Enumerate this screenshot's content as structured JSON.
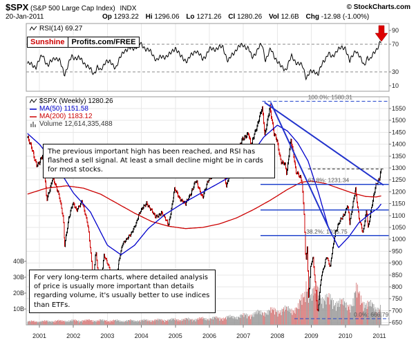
{
  "header": {
    "symbol": "$SPX",
    "name": "(S&P 500 Large Cap Index)",
    "exchange": "INDX",
    "copyright": "© StockCharts.com",
    "date": "20-Jan-2011",
    "quote": {
      "op_label": "Op",
      "op": "1293.22",
      "hi_label": "Hi",
      "hi": "1296.06",
      "lo_label": "Lo",
      "lo": "1271.26",
      "cl_label": "Cl",
      "cl": "1280.26",
      "vol_label": "Vol",
      "vol": "12.6B",
      "chg_label": "Chg",
      "chg": "-12.98 (-1.00%)"
    }
  },
  "watermark": {
    "brand": "Sunshine",
    "suffix": "Profits.com/FREE"
  },
  "rsi_panel": {
    "legend": "RSI(14) 69.27"
  },
  "main_panel": {
    "legend_spx": "$SPX (Weekly) 1280.26",
    "legend_ma50": "MA(50) 1151.58",
    "legend_ma200": "MA(200) 1183.12",
    "legend_volume": "Volume 12,614,335,488"
  },
  "annotations": {
    "note1": "The previous important high has been reached, and RSI has flashed a sell signal. At least a small decline might be in cards for most stocks.",
    "note2": "For very long-term charts, where detailed analysis of price is usually more important than details regarding volume, it's usually better to use indices than ETFs."
  },
  "colors": {
    "up": "#000000",
    "down": "#cc0000",
    "ma50": "#0000cc",
    "ma200": "#cc0000",
    "trend": "#2233cc",
    "fib": "#2244cc",
    "volume_up": "#a0a0a0",
    "volume_down": "#d98080",
    "arrow": "#dd0000",
    "grid": "#e7e7e7",
    "panel_border": "#999999"
  },
  "chart_data": {
    "type": "line",
    "title": "$SPX S&P 500 Large Cap Index, weekly candlesticks with RSI(14), MA(50), MA(200) and volume overlay, 2001-2011",
    "x_unit": "decimal_year",
    "xlim": [
      2000.65,
      2011.15
    ],
    "price_ylim": [
      650,
      1600
    ],
    "rsi_ylim": [
      0,
      100
    ],
    "legend_position": "top-left",
    "grid": true,
    "x_ticks": [
      "2001",
      "2002",
      "2003",
      "2004",
      "2005",
      "2006",
      "2007",
      "2008",
      "2009",
      "2010",
      "2011"
    ],
    "price_ticks": [
      1550,
      1500,
      1450,
      1400,
      1350,
      1300,
      1250,
      1200,
      1150,
      1100,
      1050,
      1000,
      950,
      900,
      850,
      800,
      750,
      700,
      650
    ],
    "rsi_ticks": [
      90,
      70,
      30,
      10
    ],
    "rsi_levels": {
      "overbought": 70,
      "oversold": 30
    },
    "volume_ticks": [
      {
        "v": 40,
        "label": "40B"
      },
      {
        "v": 30,
        "label": "30B"
      },
      {
        "v": 20,
        "label": "20B"
      },
      {
        "v": 10,
        "label": "10B"
      }
    ],
    "series": [
      {
        "name": "$SPX weekly close",
        "render": "candles",
        "keypoints": [
          [
            2000.65,
            1430
          ],
          [
            2000.8,
            1370
          ],
          [
            2000.92,
            1315
          ],
          [
            2001.0,
            1320
          ],
          [
            2001.1,
            1350
          ],
          [
            2001.22,
            1170
          ],
          [
            2001.4,
            1255
          ],
          [
            2001.58,
            1190
          ],
          [
            2001.7,
            1085
          ],
          [
            2001.74,
            966
          ],
          [
            2001.86,
            1090
          ],
          [
            2001.98,
            1150
          ],
          [
            2002.1,
            1120
          ],
          [
            2002.25,
            1165
          ],
          [
            2002.45,
            1040
          ],
          [
            2002.53,
            920
          ],
          [
            2002.58,
            800
          ],
          [
            2002.66,
            950
          ],
          [
            2002.78,
            777
          ],
          [
            2002.9,
            935
          ],
          [
            2003.05,
            880
          ],
          [
            2003.2,
            800
          ],
          [
            2003.45,
            985
          ],
          [
            2003.7,
            1020
          ],
          [
            2003.95,
            1110
          ],
          [
            2004.15,
            1155
          ],
          [
            2004.4,
            1095
          ],
          [
            2004.6,
            1110
          ],
          [
            2004.8,
            1062
          ],
          [
            2004.98,
            1210
          ],
          [
            2005.1,
            1180
          ],
          [
            2005.3,
            1145
          ],
          [
            2005.6,
            1245
          ],
          [
            2005.8,
            1178
          ],
          [
            2005.98,
            1250
          ],
          [
            2006.2,
            1290
          ],
          [
            2006.37,
            1325
          ],
          [
            2006.5,
            1225
          ],
          [
            2006.75,
            1340
          ],
          [
            2006.98,
            1420
          ],
          [
            2007.15,
            1450
          ],
          [
            2007.22,
            1387
          ],
          [
            2007.42,
            1490
          ],
          [
            2007.55,
            1552
          ],
          [
            2007.63,
            1433
          ],
          [
            2007.78,
            1565
          ],
          [
            2007.9,
            1440
          ],
          [
            2008.0,
            1411
          ],
          [
            2008.1,
            1330
          ],
          [
            2008.22,
            1315
          ],
          [
            2008.27,
            1273
          ],
          [
            2008.4,
            1425
          ],
          [
            2008.55,
            1280
          ],
          [
            2008.72,
            1255
          ],
          [
            2008.79,
            1100
          ],
          [
            2008.83,
            900
          ],
          [
            2008.88,
            968
          ],
          [
            2008.92,
            752
          ],
          [
            2008.98,
            890
          ],
          [
            2009.05,
            930
          ],
          [
            2009.12,
            805
          ],
          [
            2009.18,
            683
          ],
          [
            2009.3,
            850
          ],
          [
            2009.45,
            930
          ],
          [
            2009.55,
            880
          ],
          [
            2009.7,
            1030
          ],
          [
            2009.82,
            1070
          ],
          [
            2009.92,
            1093
          ],
          [
            2010.0,
            1115
          ],
          [
            2010.06,
            1150
          ],
          [
            2010.13,
            1065
          ],
          [
            2010.3,
            1217
          ],
          [
            2010.4,
            1090
          ],
          [
            2010.52,
            1023
          ],
          [
            2010.62,
            1125
          ],
          [
            2010.67,
            1050
          ],
          [
            2010.78,
            1145
          ],
          [
            2010.9,
            1225
          ],
          [
            2011.0,
            1258
          ],
          [
            2011.05,
            1293
          ],
          [
            2011.07,
            1280.26
          ]
        ]
      },
      {
        "name": "MA(50)",
        "render": "line",
        "color_key": "ma50",
        "keypoints": [
          [
            2000.65,
            1445
          ],
          [
            2001.0,
            1400
          ],
          [
            2001.5,
            1310
          ],
          [
            2002.0,
            1195
          ],
          [
            2002.5,
            1115
          ],
          [
            2003.0,
            975
          ],
          [
            2003.4,
            935
          ],
          [
            2003.8,
            975
          ],
          [
            2004.2,
            1045
          ],
          [
            2004.7,
            1105
          ],
          [
            2005.2,
            1150
          ],
          [
            2005.7,
            1190
          ],
          [
            2006.2,
            1230
          ],
          [
            2006.7,
            1270
          ],
          [
            2007.1,
            1330
          ],
          [
            2007.6,
            1430
          ],
          [
            2008.0,
            1480
          ],
          [
            2008.3,
            1455
          ],
          [
            2008.6,
            1405
          ],
          [
            2008.9,
            1330
          ],
          [
            2009.2,
            1200
          ],
          [
            2009.5,
            1050
          ],
          [
            2009.8,
            965
          ],
          [
            2010.1,
            1010
          ],
          [
            2010.4,
            1070
          ],
          [
            2010.7,
            1105
          ],
          [
            2010.95,
            1130
          ],
          [
            2011.07,
            1151.58
          ]
        ]
      },
      {
        "name": "MA(200)",
        "render": "line",
        "color_key": "ma200",
        "keypoints": [
          [
            2000.65,
            1190
          ],
          [
            2001.2,
            1215
          ],
          [
            2001.8,
            1225
          ],
          [
            2002.3,
            1215
          ],
          [
            2002.8,
            1190
          ],
          [
            2003.3,
            1150
          ],
          [
            2003.8,
            1110
          ],
          [
            2004.3,
            1075
          ],
          [
            2004.8,
            1055
          ],
          [
            2005.3,
            1045
          ],
          [
            2005.8,
            1050
          ],
          [
            2006.3,
            1065
          ],
          [
            2006.8,
            1090
          ],
          [
            2007.3,
            1125
          ],
          [
            2007.8,
            1165
          ],
          [
            2008.3,
            1210
          ],
          [
            2008.7,
            1240
          ],
          [
            2009.0,
            1245
          ],
          [
            2009.4,
            1235
          ],
          [
            2009.8,
            1215
          ],
          [
            2010.2,
            1195
          ],
          [
            2010.6,
            1180
          ],
          [
            2010.9,
            1178
          ],
          [
            2011.07,
            1183.12
          ]
        ]
      },
      {
        "name": "RSI(14)",
        "render": "line",
        "panel": "rsi",
        "keypoints": [
          [
            2000.65,
            42
          ],
          [
            2000.9,
            38
          ],
          [
            2001.1,
            55
          ],
          [
            2001.25,
            38
          ],
          [
            2001.45,
            52
          ],
          [
            2001.6,
            45
          ],
          [
            2001.74,
            27
          ],
          [
            2001.95,
            52
          ],
          [
            2002.15,
            50
          ],
          [
            2002.35,
            42
          ],
          [
            2002.6,
            27
          ],
          [
            2002.7,
            38
          ],
          [
            2002.8,
            30
          ],
          [
            2002.95,
            47
          ],
          [
            2003.1,
            42
          ],
          [
            2003.25,
            37
          ],
          [
            2003.5,
            62
          ],
          [
            2003.75,
            64
          ],
          [
            2003.95,
            70
          ],
          [
            2004.2,
            62
          ],
          [
            2004.45,
            48
          ],
          [
            2004.65,
            52
          ],
          [
            2004.85,
            55
          ],
          [
            2005.0,
            66
          ],
          [
            2005.15,
            52
          ],
          [
            2005.35,
            46
          ],
          [
            2005.6,
            62
          ],
          [
            2005.8,
            48
          ],
          [
            2006.0,
            62
          ],
          [
            2006.2,
            64
          ],
          [
            2006.4,
            66
          ],
          [
            2006.55,
            45
          ],
          [
            2006.8,
            64
          ],
          [
            2007.0,
            69
          ],
          [
            2007.15,
            64
          ],
          [
            2007.25,
            50
          ],
          [
            2007.45,
            65
          ],
          [
            2007.55,
            69
          ],
          [
            2007.65,
            48
          ],
          [
            2007.8,
            62
          ],
          [
            2007.95,
            50
          ],
          [
            2008.1,
            37
          ],
          [
            2008.25,
            34
          ],
          [
            2008.42,
            52
          ],
          [
            2008.6,
            42
          ],
          [
            2008.75,
            38
          ],
          [
            2008.85,
            22
          ],
          [
            2008.95,
            28
          ],
          [
            2009.1,
            32
          ],
          [
            2009.2,
            26
          ],
          [
            2009.35,
            45
          ],
          [
            2009.5,
            57
          ],
          [
            2009.6,
            50
          ],
          [
            2009.75,
            62
          ],
          [
            2009.9,
            64
          ],
          [
            2010.0,
            66
          ],
          [
            2010.13,
            44
          ],
          [
            2010.3,
            63
          ],
          [
            2010.45,
            48
          ],
          [
            2010.55,
            40
          ],
          [
            2010.65,
            52
          ],
          [
            2010.72,
            45
          ],
          [
            2010.85,
            60
          ],
          [
            2010.95,
            65
          ],
          [
            2011.02,
            71
          ],
          [
            2011.05,
            73
          ],
          [
            2011.07,
            69.27
          ]
        ]
      },
      {
        "name": "Volume (billions of shares)",
        "render": "bars",
        "panel": "volume",
        "keypoints": [
          [
            2000.65,
            2.2
          ],
          [
            2001.5,
            2.6
          ],
          [
            2002.5,
            3.0
          ],
          [
            2003.5,
            2.7
          ],
          [
            2004.5,
            3.2
          ],
          [
            2005.5,
            3.8
          ],
          [
            2006.5,
            4.8
          ],
          [
            2007.0,
            6.0
          ],
          [
            2007.6,
            8.5
          ],
          [
            2008.0,
            9.5
          ],
          [
            2008.3,
            10
          ],
          [
            2008.6,
            11
          ],
          [
            2008.8,
            20
          ],
          [
            2008.85,
            30
          ],
          [
            2008.88,
            26
          ],
          [
            2009.0,
            18
          ],
          [
            2009.2,
            24
          ],
          [
            2009.35,
            17
          ],
          [
            2009.6,
            16
          ],
          [
            2009.8,
            15
          ],
          [
            2010.0,
            13
          ],
          [
            2010.2,
            14
          ],
          [
            2010.33,
            22
          ],
          [
            2010.5,
            16
          ],
          [
            2010.7,
            13
          ],
          [
            2010.9,
            11
          ],
          [
            2011.07,
            12.6
          ]
        ]
      }
    ],
    "fib_levels": [
      {
        "label": "100.0%: 1580.31",
        "price": 1580.31,
        "from_year": 2007.55,
        "dashed": true,
        "label_year": 2008.9
      },
      {
        "label": "61.8%: 1231.34",
        "price": 1231.34,
        "from_year": 2007.5,
        "dashed": false,
        "label_year": 2008.9
      },
      {
        "label": "",
        "price": 1123.55,
        "from_year": 2007.5,
        "dashed": false,
        "label_year": null
      },
      {
        "label": "38.2%: 1015.75",
        "price": 1015.75,
        "from_year": 2007.5,
        "dashed": false,
        "label_year": 2008.85
      },
      {
        "label": "0.0%: 666.79",
        "price": 666.79,
        "from_year": 2008.5,
        "dashed": true,
        "label_year": 2010.25
      }
    ],
    "trendlines": [
      {
        "name": "long-term-declining-resistance",
        "x1": 2007.62,
        "p1": 1576,
        "x2": 2011.12,
        "p2": 1228,
        "dashed": false
      },
      {
        "name": "steep-declining-resistance",
        "x1": 2007.8,
        "p1": 1576,
        "x2": 2009.6,
        "p2": 1020,
        "dashed": false
      },
      {
        "name": "previous-high-level",
        "x1": 2008.9,
        "p1": 1296,
        "x2": 2011.14,
        "p2": 1296,
        "dashed": true,
        "color": "#222222"
      }
    ]
  }
}
